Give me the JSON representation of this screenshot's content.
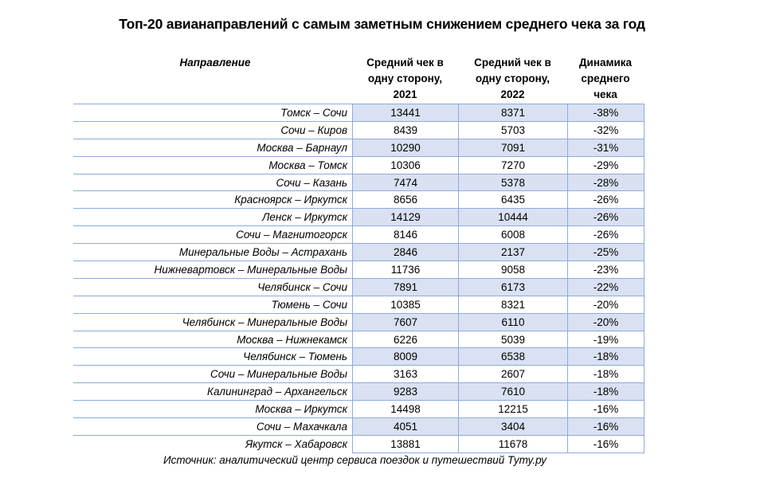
{
  "title": "Топ-20 авианаправлений с самым заметным снижением среднего чека за год",
  "headers": {
    "route": "Направление",
    "avg_2021": [
      "Средний чек в",
      "одну сторону,",
      "2021"
    ],
    "avg_2022": [
      "Средний чек в",
      "одну сторону,",
      "2022"
    ],
    "dynamics": [
      "Динамика",
      "среднего",
      "чека"
    ]
  },
  "rows": [
    {
      "route": "Томск – Сочи",
      "avg_2021": "13441",
      "avg_2022": "8371",
      "change": "-38%"
    },
    {
      "route": "Сочи – Киров",
      "avg_2021": "8439",
      "avg_2022": "5703",
      "change": "-32%"
    },
    {
      "route": "Москва – Барнаул",
      "avg_2021": "10290",
      "avg_2022": "7091",
      "change": "-31%"
    },
    {
      "route": "Москва – Томск",
      "avg_2021": "10306",
      "avg_2022": "7270",
      "change": "-29%"
    },
    {
      "route": "Сочи – Казань",
      "avg_2021": "7474",
      "avg_2022": "5378",
      "change": "-28%"
    },
    {
      "route": "Красноярск – Иркутск",
      "avg_2021": "8656",
      "avg_2022": "6435",
      "change": "-26%"
    },
    {
      "route": "Ленск – Иркутск",
      "avg_2021": "14129",
      "avg_2022": "10444",
      "change": "-26%"
    },
    {
      "route": "Сочи – Магнитогорск",
      "avg_2021": "8146",
      "avg_2022": "6008",
      "change": "-26%"
    },
    {
      "route": "Минеральные Воды – Астрахань",
      "avg_2021": "2846",
      "avg_2022": "2137",
      "change": "-25%"
    },
    {
      "route": "Нижневартовск – Минеральные Воды",
      "avg_2021": "11736",
      "avg_2022": "9058",
      "change": "-23%"
    },
    {
      "route": "Челябинск – Сочи",
      "avg_2021": "7891",
      "avg_2022": "6173",
      "change": "-22%"
    },
    {
      "route": "Тюмень – Сочи",
      "avg_2021": "10385",
      "avg_2022": "8321",
      "change": "-20%"
    },
    {
      "route": "Челябинск – Минеральные Воды",
      "avg_2021": "7607",
      "avg_2022": "6110",
      "change": "-20%"
    },
    {
      "route": "Москва – Нижнекамск",
      "avg_2021": "6226",
      "avg_2022": "5039",
      "change": "-19%"
    },
    {
      "route": "Челябинск – Тюмень",
      "avg_2021": "8009",
      "avg_2022": "6538",
      "change": "-18%"
    },
    {
      "route": "Сочи – Минеральные Воды",
      "avg_2021": "3163",
      "avg_2022": "2607",
      "change": "-18%"
    },
    {
      "route": "Калининград – Архангельск",
      "avg_2021": "9283",
      "avg_2022": "7610",
      "change": "-18%"
    },
    {
      "route": "Москва – Иркутск",
      "avg_2021": "14498",
      "avg_2022": "12215",
      "change": "-16%"
    },
    {
      "route": "Сочи – Махачкала",
      "avg_2021": "4051",
      "avg_2022": "3404",
      "change": "-16%"
    },
    {
      "route": "Якутск – Хабаровск",
      "avg_2021": "13881",
      "avg_2022": "11678",
      "change": "-16%"
    }
  ],
  "source": "Источник: аналитический центр сервиса поездок и путешествий Туту.ру",
  "colors": {
    "shade": "#d9e1f2",
    "border": "#8eaadb"
  }
}
